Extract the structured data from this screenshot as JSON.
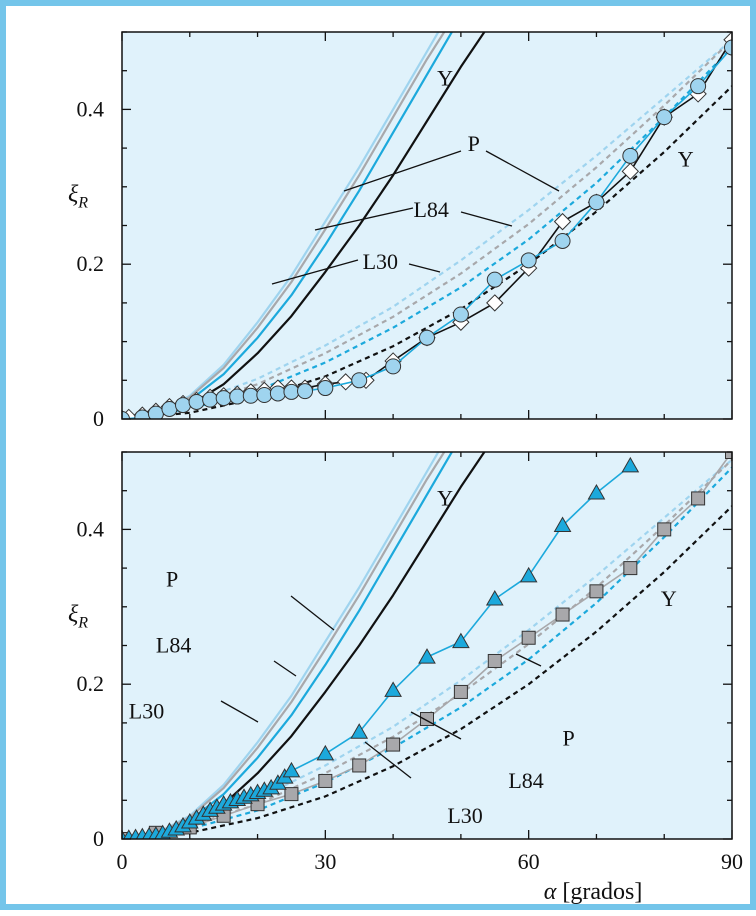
{
  "chart_data": [
    {
      "type": "line",
      "panel": "top",
      "ylabel_symbol": "ξ",
      "ylabel_subscript": "R",
      "xlim": [
        0,
        90
      ],
      "ylim": [
        0,
        0.5
      ],
      "xticks": [
        0,
        30,
        60,
        90
      ],
      "yticks": [
        0,
        0.2,
        0.4
      ],
      "ytick_labels": [
        "0",
        "0.2",
        "0.4"
      ],
      "grid": false,
      "colors": {
        "background": "#e0f2fb",
        "frame": "#74c5ea",
        "cyan": "#1ca9dc",
        "light_blue": "#9fd4ef",
        "gray": "#a8a8ab",
        "black": "#111111"
      },
      "series": [
        {
          "name": "L30",
          "style": "solid",
          "color": "#9fd4ef",
          "x": [
            5,
            10,
            15,
            20,
            25,
            30,
            35,
            40,
            45,
            48
          ],
          "y": [
            0.007,
            0.03,
            0.07,
            0.125,
            0.185,
            0.255,
            0.325,
            0.4,
            0.475,
            0.52
          ]
        },
        {
          "name": "L84",
          "style": "solid",
          "color": "#a8a8ab",
          "x": [
            5,
            10,
            15,
            20,
            25,
            30,
            35,
            40,
            45,
            49
          ],
          "y": [
            0.006,
            0.028,
            0.066,
            0.118,
            0.177,
            0.245,
            0.315,
            0.39,
            0.465,
            0.52
          ]
        },
        {
          "name": "P",
          "style": "solid",
          "color": "#1ca9dc",
          "x": [
            5,
            10,
            15,
            20,
            25,
            30,
            35,
            40,
            45,
            50
          ],
          "y": [
            0.005,
            0.024,
            0.058,
            0.105,
            0.16,
            0.225,
            0.295,
            0.37,
            0.445,
            0.52
          ]
        },
        {
          "name": "Y",
          "style": "solid",
          "color": "#111111",
          "x": [
            5,
            10,
            15,
            20,
            25,
            30,
            35,
            40,
            45,
            50,
            55
          ],
          "y": [
            0.003,
            0.018,
            0.045,
            0.085,
            0.133,
            0.19,
            0.25,
            0.315,
            0.385,
            0.455,
            0.52
          ]
        },
        {
          "name": "L30",
          "style": "dashed",
          "color": "#9fd4ef",
          "x": [
            0,
            10,
            20,
            30,
            40,
            50,
            60,
            70,
            80,
            90
          ],
          "y": [
            0,
            0.02,
            0.052,
            0.095,
            0.145,
            0.205,
            0.27,
            0.34,
            0.415,
            0.49
          ]
        },
        {
          "name": "L84",
          "style": "dashed",
          "color": "#a8a8ab",
          "x": [
            0,
            10,
            20,
            30,
            40,
            50,
            60,
            70,
            80,
            90
          ],
          "y": [
            0,
            0.017,
            0.045,
            0.085,
            0.132,
            0.188,
            0.252,
            0.325,
            0.405,
            0.49
          ]
        },
        {
          "name": "P",
          "style": "dashed",
          "color": "#1ca9dc",
          "x": [
            0,
            10,
            20,
            30,
            40,
            50,
            60,
            70,
            80,
            90
          ],
          "y": [
            0,
            0.013,
            0.037,
            0.073,
            0.118,
            0.17,
            0.232,
            0.305,
            0.39,
            0.48
          ]
        },
        {
          "name": "Y",
          "style": "dashed",
          "color": "#111111",
          "x": [
            0,
            10,
            20,
            30,
            40,
            50,
            60,
            70,
            80,
            90
          ],
          "y": [
            0,
            0.008,
            0.027,
            0.055,
            0.094,
            0.142,
            0.2,
            0.268,
            0.345,
            0.43
          ]
        },
        {
          "marker": "diamond",
          "color": "#ffffff",
          "line_color": "#111111",
          "x": [
            0,
            1,
            3,
            5,
            7,
            9,
            11,
            13,
            15,
            17,
            19,
            21,
            23,
            25,
            27,
            30,
            33,
            36,
            40,
            45,
            50,
            55,
            60,
            65,
            70,
            75,
            80,
            85,
            90
          ],
          "y": [
            0,
            0.002,
            0.005,
            0.01,
            0.016,
            0.02,
            0.024,
            0.028,
            0.03,
            0.032,
            0.035,
            0.037,
            0.04,
            0.04,
            0.04,
            0.045,
            0.048,
            0.05,
            0.075,
            0.105,
            0.125,
            0.15,
            0.195,
            0.255,
            0.28,
            0.32,
            0.39,
            0.42,
            0.49
          ]
        },
        {
          "marker": "circle",
          "color": "#9fd4ef",
          "line_color": "#1ca9dc",
          "x": [
            0,
            3,
            5,
            7,
            9,
            11,
            13,
            15,
            17,
            19,
            21,
            23,
            25,
            27,
            30,
            35,
            40,
            45,
            50,
            55,
            60,
            65,
            70,
            75,
            80,
            85,
            90
          ],
          "y": [
            0,
            0.002,
            0.007,
            0.013,
            0.018,
            0.022,
            0.025,
            0.027,
            0.029,
            0.03,
            0.031,
            0.033,
            0.035,
            0.036,
            0.04,
            0.05,
            0.068,
            0.105,
            0.135,
            0.18,
            0.205,
            0.23,
            0.28,
            0.34,
            0.39,
            0.43,
            0.48
          ]
        }
      ],
      "curve_labels": [
        {
          "text": "Y",
          "x": 46.5,
          "y": 0.44
        },
        {
          "text": "P",
          "x": 51,
          "y": 0.355
        },
        {
          "text": "L84",
          "x": 43,
          "y": 0.27
        },
        {
          "text": "L30",
          "x": 35.5,
          "y": 0.203
        },
        {
          "text": "Y",
          "x": 82,
          "y": 0.335
        }
      ]
    },
    {
      "type": "line",
      "panel": "bottom",
      "ylabel_symbol": "ξ",
      "ylabel_subscript": "R",
      "xlabel_symbol": "α",
      "xlabel_text": "[grados]",
      "xlim": [
        0,
        90
      ],
      "ylim": [
        0,
        0.5
      ],
      "xticks": [
        0,
        30,
        60,
        90
      ],
      "xtick_labels": [
        "0",
        "30",
        "60",
        "90"
      ],
      "yticks": [
        0,
        0.2,
        0.4
      ],
      "ytick_labels": [
        "0",
        "0.2",
        "0.4"
      ],
      "grid": false,
      "series": [
        {
          "name": "L30",
          "style": "solid",
          "color": "#9fd4ef",
          "x": [
            5,
            10,
            15,
            20,
            25,
            30,
            35,
            40,
            45,
            48
          ],
          "y": [
            0.007,
            0.03,
            0.07,
            0.125,
            0.185,
            0.255,
            0.325,
            0.4,
            0.475,
            0.52
          ]
        },
        {
          "name": "L84",
          "style": "solid",
          "color": "#a8a8ab",
          "x": [
            5,
            10,
            15,
            20,
            25,
            30,
            35,
            40,
            45,
            49
          ],
          "y": [
            0.006,
            0.028,
            0.066,
            0.118,
            0.177,
            0.245,
            0.315,
            0.39,
            0.465,
            0.52
          ]
        },
        {
          "name": "P",
          "style": "solid",
          "color": "#1ca9dc",
          "x": [
            5,
            10,
            15,
            20,
            25,
            30,
            35,
            40,
            45,
            50
          ],
          "y": [
            0.005,
            0.024,
            0.058,
            0.105,
            0.16,
            0.225,
            0.295,
            0.37,
            0.445,
            0.52
          ]
        },
        {
          "name": "Y",
          "style": "solid",
          "color": "#111111",
          "x": [
            5,
            10,
            15,
            20,
            25,
            30,
            35,
            40,
            45,
            50,
            55
          ],
          "y": [
            0.003,
            0.018,
            0.045,
            0.085,
            0.133,
            0.19,
            0.25,
            0.315,
            0.385,
            0.455,
            0.52
          ]
        },
        {
          "name": "L30",
          "style": "dashed",
          "color": "#9fd4ef",
          "x": [
            0,
            10,
            20,
            30,
            40,
            50,
            60,
            70,
            80,
            90
          ],
          "y": [
            0,
            0.02,
            0.052,
            0.095,
            0.145,
            0.205,
            0.27,
            0.34,
            0.415,
            0.49
          ]
        },
        {
          "name": "L84",
          "style": "dashed",
          "color": "#a8a8ab",
          "x": [
            0,
            10,
            20,
            30,
            40,
            50,
            60,
            70,
            80,
            90
          ],
          "y": [
            0,
            0.017,
            0.045,
            0.085,
            0.132,
            0.188,
            0.252,
            0.325,
            0.405,
            0.49
          ]
        },
        {
          "name": "P",
          "style": "dashed",
          "color": "#1ca9dc",
          "x": [
            0,
            10,
            20,
            30,
            40,
            50,
            60,
            70,
            80,
            90
          ],
          "y": [
            0,
            0.013,
            0.037,
            0.073,
            0.118,
            0.17,
            0.232,
            0.305,
            0.39,
            0.48
          ]
        },
        {
          "name": "Y",
          "style": "dashed",
          "color": "#111111",
          "x": [
            0,
            10,
            20,
            30,
            40,
            50,
            60,
            70,
            80,
            90
          ],
          "y": [
            0,
            0.008,
            0.027,
            0.055,
            0.094,
            0.142,
            0.2,
            0.268,
            0.345,
            0.43
          ]
        },
        {
          "marker": "square",
          "color": "#a8a8ab",
          "line_color": "#a8a8ab",
          "x": [
            0,
            5,
            10,
            15,
            20,
            25,
            30,
            35,
            40,
            45,
            50,
            55,
            60,
            65,
            70,
            75,
            80,
            85,
            90
          ],
          "y": [
            0,
            0.008,
            0.015,
            0.03,
            0.045,
            0.058,
            0.075,
            0.095,
            0.122,
            0.155,
            0.19,
            0.23,
            0.26,
            0.29,
            0.32,
            0.35,
            0.4,
            0.44,
            0.5
          ]
        },
        {
          "marker": "triangle",
          "color": "#1ca9dc",
          "line_color": "#1ca9dc",
          "x": [
            0,
            1,
            2,
            3,
            4,
            5,
            6,
            7,
            8,
            9,
            10,
            11,
            12,
            13,
            14,
            15,
            16,
            17,
            18,
            19,
            20,
            21,
            22,
            23,
            24,
            25,
            30,
            35,
            40,
            45,
            50,
            55,
            60,
            65,
            70,
            75
          ],
          "y": [
            0,
            0.001,
            0.002,
            0.003,
            0.004,
            0.005,
            0.007,
            0.01,
            0.013,
            0.017,
            0.022,
            0.027,
            0.032,
            0.037,
            0.041,
            0.045,
            0.048,
            0.051,
            0.054,
            0.057,
            0.06,
            0.063,
            0.066,
            0.072,
            0.08,
            0.088,
            0.11,
            0.138,
            0.192,
            0.235,
            0.255,
            0.31,
            0.34,
            0.405,
            0.447,
            0.482
          ]
        }
      ],
      "curve_labels": [
        {
          "text": "Y",
          "x": 46.5,
          "y": 0.44
        },
        {
          "text": "P",
          "x": 6.5,
          "y": 0.335
        },
        {
          "text": "L84",
          "x": 5,
          "y": 0.25
        },
        {
          "text": "L30",
          "x": 1,
          "y": 0.165
        },
        {
          "text": "Y",
          "x": 79.5,
          "y": 0.31
        },
        {
          "text": "P",
          "x": 65,
          "y": 0.13
        },
        {
          "text": "L84",
          "x": 57,
          "y": 0.075
        },
        {
          "text": "L30",
          "x": 48,
          "y": 0.03
        }
      ]
    }
  ]
}
